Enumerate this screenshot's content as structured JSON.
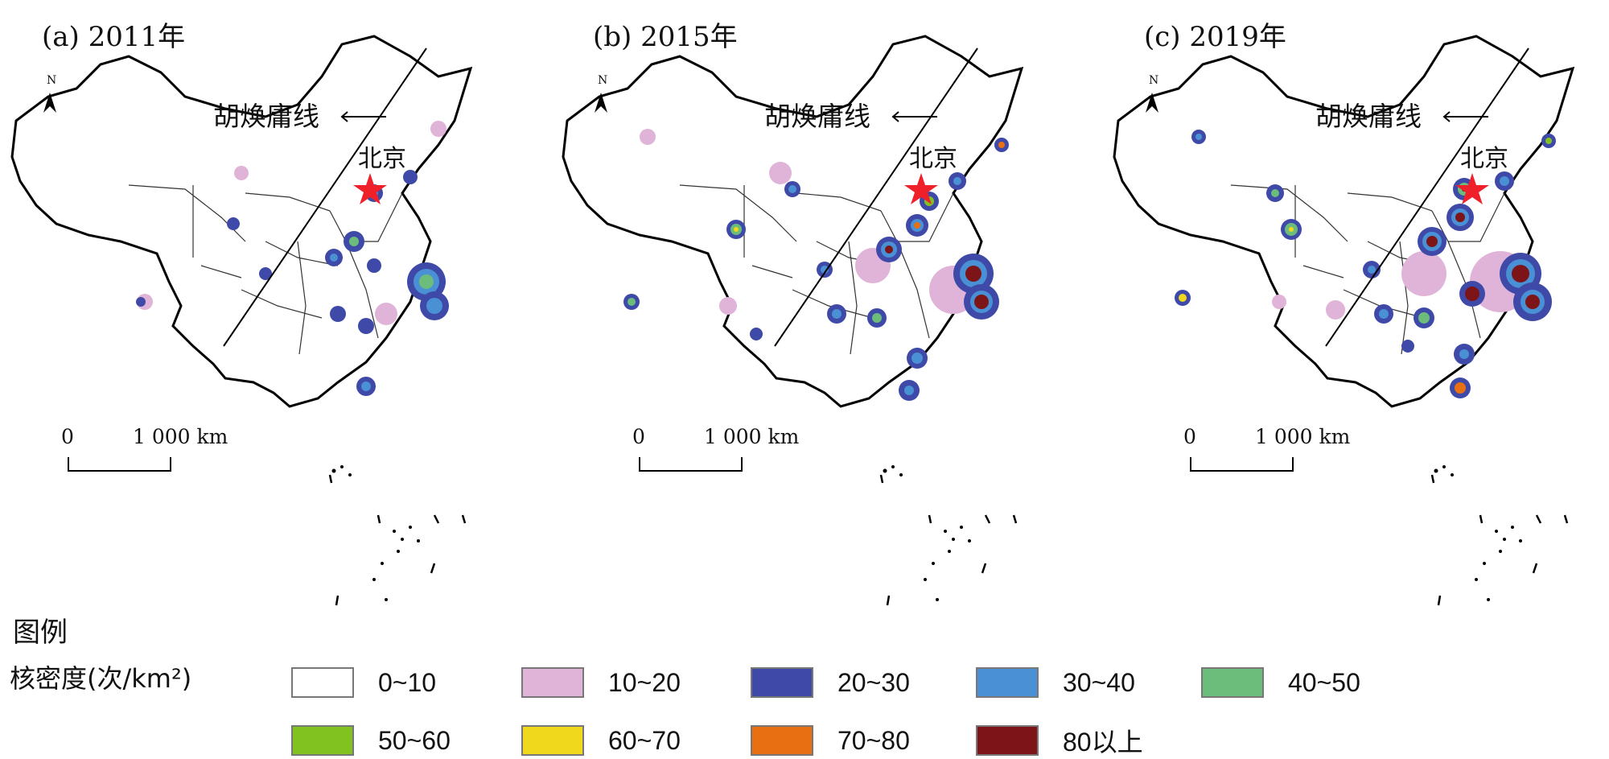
{
  "panels": [
    {
      "title": "(a) 2011年",
      "hu_label": "胡焕庸线",
      "beijing_label": "北京",
      "scale_zero": "0",
      "scale_distance": "1 000 km",
      "north": "N"
    },
    {
      "title": "(b) 2015年",
      "hu_label": "胡焕庸线",
      "beijing_label": "北京",
      "scale_zero": "0",
      "scale_distance": "1 000 km",
      "north": "N"
    },
    {
      "title": "(c) 2019年",
      "hu_label": "胡焕庸线",
      "beijing_label": "北京",
      "scale_zero": "0",
      "scale_distance": "1 000 km",
      "north": "N"
    }
  ],
  "legend": {
    "title": "图例",
    "subtitle": "核密度(次/km²)",
    "items": [
      {
        "label": "0~10",
        "color": "#ffffff"
      },
      {
        "label": "10~20",
        "color": "#e0b4d8"
      },
      {
        "label": "20~30",
        "color": "#3f4aa8"
      },
      {
        "label": "30~40",
        "color": "#4a90d4"
      },
      {
        "label": "40~50",
        "color": "#6cbd7c"
      },
      {
        "label": "50~60",
        "color": "#82c220"
      },
      {
        "label": "60~70",
        "color": "#f0d81c"
      },
      {
        "label": "70~80",
        "color": "#e87012"
      },
      {
        "label": "80以上",
        "color": "#7c1418"
      }
    ]
  }
}
